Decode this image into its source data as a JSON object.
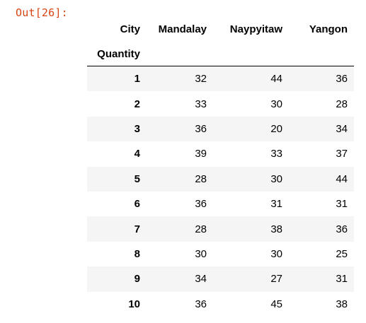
{
  "cell": {
    "prompt": "Out[26]:"
  },
  "dataframe": {
    "columns_name": "City",
    "columns": [
      "Mandalay",
      "Naypyitaw",
      "Yangon"
    ],
    "index_name": "Quantity",
    "rows": [
      {
        "index": "1",
        "values": [
          "32",
          "44",
          "36"
        ]
      },
      {
        "index": "2",
        "values": [
          "33",
          "30",
          "28"
        ]
      },
      {
        "index": "3",
        "values": [
          "36",
          "20",
          "34"
        ]
      },
      {
        "index": "4",
        "values": [
          "39",
          "33",
          "37"
        ]
      },
      {
        "index": "5",
        "values": [
          "28",
          "30",
          "44"
        ]
      },
      {
        "index": "6",
        "values": [
          "36",
          "31",
          "31"
        ]
      },
      {
        "index": "7",
        "values": [
          "28",
          "38",
          "36"
        ]
      },
      {
        "index": "8",
        "values": [
          "30",
          "30",
          "25"
        ]
      },
      {
        "index": "9",
        "values": [
          "34",
          "27",
          "31"
        ]
      },
      {
        "index": "10",
        "values": [
          "36",
          "45",
          "38"
        ]
      }
    ]
  },
  "colors": {
    "prompt": "#d84315",
    "stripe": "#f5f5f5",
    "text": "#000000"
  }
}
